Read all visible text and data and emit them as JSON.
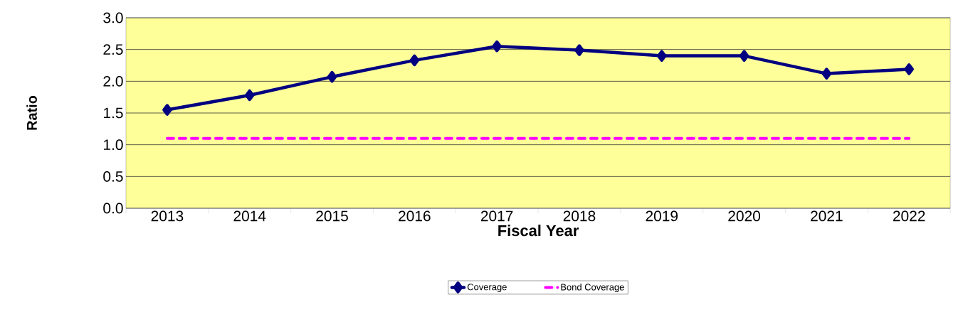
{
  "chart_data": {
    "type": "line",
    "xlabel": "Fiscal Year",
    "ylabel": "Ratio",
    "categories": [
      "2013",
      "2014",
      "2015",
      "2016",
      "2017",
      "2018",
      "2019",
      "2020",
      "2021",
      "2022"
    ],
    "series": [
      {
        "name": "Coverage",
        "color": "#000080",
        "marker": "diamond",
        "line_style": "solid",
        "values": [
          1.55,
          1.78,
          2.07,
          2.33,
          2.55,
          2.49,
          2.4,
          2.4,
          2.12,
          2.19
        ]
      },
      {
        "name": "Bond Coverage",
        "color": "#ff00ff",
        "marker": "none",
        "line_style": "dashed",
        "values": [
          1.1,
          1.1,
          1.1,
          1.1,
          1.1,
          1.1,
          1.1,
          1.1,
          1.1,
          1.1
        ]
      }
    ],
    "ylim": [
      0,
      3
    ],
    "yticks": [
      {
        "value": 0,
        "label": "0.0"
      },
      0.5,
      {
        "value": 1,
        "label": "1.0"
      },
      1.5,
      {
        "value": 2,
        "label": "2.0"
      },
      2.5,
      {
        "value": 3,
        "label": "3.0"
      }
    ],
    "grid": "y",
    "legend": "bottom"
  }
}
